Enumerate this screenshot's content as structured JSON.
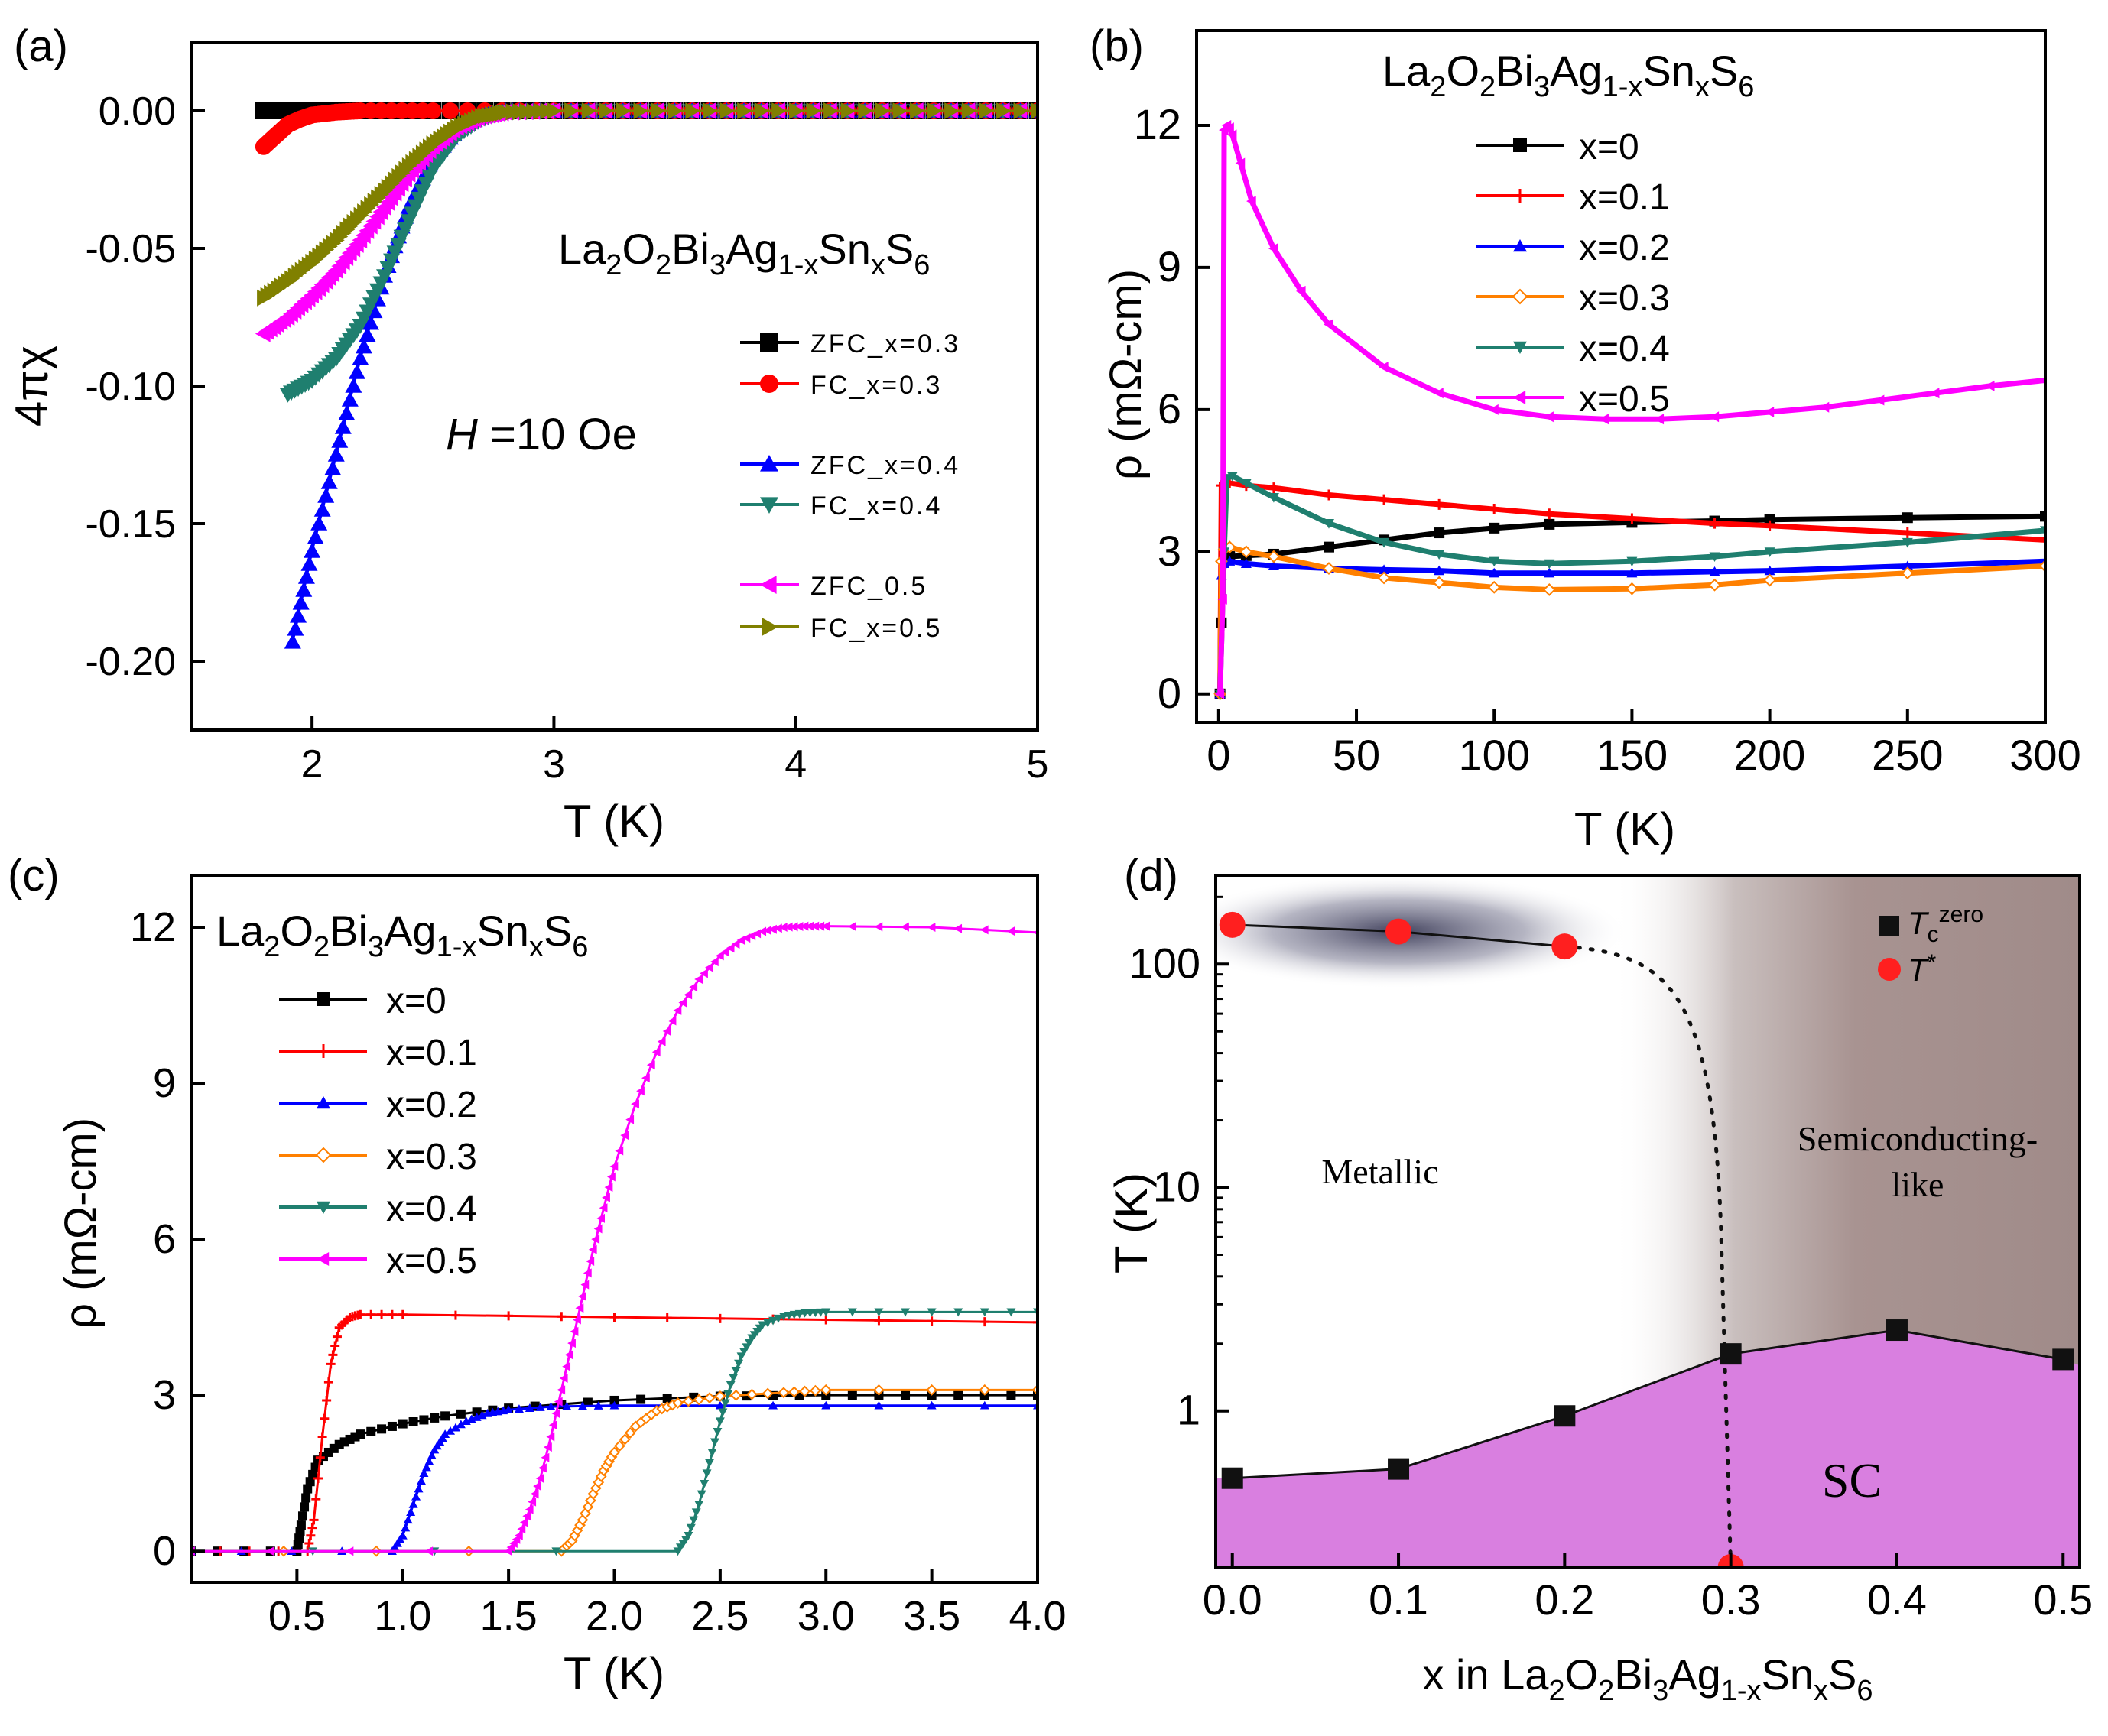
{
  "chart_data": [
    {
      "panel": "(a)",
      "type": "scatter",
      "title": "La2O2Bi3Ag1-xSnxS6",
      "title_parts": [
        "La",
        "2",
        "O",
        "2",
        "Bi",
        "3",
        "Ag",
        "1-x",
        "Sn",
        "x",
        "S",
        "6"
      ],
      "annotation": "H =10 Oe",
      "annotation_italic": "H",
      "annotation_rest": " =10 Oe",
      "xlabel": "T (K)",
      "ylabel": "4πχ",
      "xlim": [
        1.5,
        5
      ],
      "ylim": [
        -0.225,
        0.025
      ],
      "xticks": [
        2,
        3,
        4,
        5
      ],
      "xtick_labels": [
        "2",
        "3",
        "4",
        "5"
      ],
      "yticks": [
        0.0,
        -0.05,
        -0.1,
        -0.15,
        -0.2
      ],
      "ytick_labels": [
        "0.00",
        "-0.05",
        "-0.10",
        "-0.15",
        "-0.20"
      ],
      "series": [
        {
          "name": "ZFC_x=0.3",
          "color": "#000000",
          "marker": "square",
          "x": [
            1.8,
            2.0,
            2.2,
            2.5,
            3.0,
            3.5,
            4.0,
            4.5,
            5.0
          ],
          "y": [
            0,
            0,
            0,
            0,
            0,
            0,
            0,
            0,
            0
          ]
        },
        {
          "name": "FC_x=0.3",
          "color": "#ff0000",
          "marker": "circle",
          "x": [
            1.8,
            1.85,
            1.9,
            1.95,
            2.0,
            2.1,
            2.2,
            2.5,
            3.0,
            3.5,
            4.0,
            4.5,
            5.0
          ],
          "y": [
            -0.013,
            -0.009,
            -0.005,
            -0.003,
            -0.0015,
            -0.0005,
            0,
            0,
            0,
            0,
            0,
            0,
            0
          ]
        },
        {
          "name": "ZFC_x=0.4",
          "color": "#0000ff",
          "marker": "triangle-up",
          "x": [
            1.92,
            2.0,
            2.1,
            2.2,
            2.3,
            2.4,
            2.5,
            2.6,
            2.7,
            2.8,
            3.0,
            3.5,
            4.0,
            4.5,
            5.0
          ],
          "y": [
            -0.193,
            -0.16,
            -0.125,
            -0.09,
            -0.06,
            -0.035,
            -0.017,
            -0.007,
            -0.002,
            0,
            0,
            0,
            0,
            0,
            0
          ]
        },
        {
          "name": "FC_x=0.4",
          "color": "#1f7f6f",
          "marker": "triangle-down",
          "x": [
            1.9,
            2.0,
            2.1,
            2.2,
            2.3,
            2.4,
            2.5,
            2.6,
            2.7,
            2.8,
            3.0,
            3.5,
            4.0,
            4.5,
            5.0
          ],
          "y": [
            -0.103,
            -0.098,
            -0.09,
            -0.078,
            -0.06,
            -0.04,
            -0.021,
            -0.009,
            -0.003,
            -0.0005,
            0,
            0,
            0,
            0,
            0
          ]
        },
        {
          "name": "ZFC_0.5",
          "color": "#ff00ff",
          "marker": "triangle-left",
          "x": [
            1.8,
            1.9,
            2.0,
            2.1,
            2.2,
            2.3,
            2.4,
            2.5,
            2.6,
            2.7,
            2.8,
            3.0,
            3.5,
            4.0,
            4.5,
            5.0
          ],
          "y": [
            -0.081,
            -0.075,
            -0.067,
            -0.058,
            -0.047,
            -0.035,
            -0.023,
            -0.013,
            -0.006,
            -0.002,
            -0.0005,
            0,
            0,
            0,
            0,
            0
          ]
        },
        {
          "name": "FC_x=0.5",
          "color": "#808000",
          "marker": "triangle-right",
          "x": [
            1.8,
            1.9,
            2.0,
            2.1,
            2.2,
            2.3,
            2.4,
            2.5,
            2.6,
            2.7,
            2.8,
            3.0,
            3.5,
            4.0,
            4.5,
            5.0
          ],
          "y": [
            -0.068,
            -0.062,
            -0.055,
            -0.047,
            -0.038,
            -0.029,
            -0.02,
            -0.012,
            -0.006,
            -0.002,
            -0.0005,
            0,
            0,
            0,
            0,
            0
          ]
        }
      ]
    },
    {
      "panel": "(b)",
      "type": "line",
      "title": "La2O2Bi3Ag1-xSnxS6",
      "title_parts": [
        "La",
        "2",
        "O",
        "2",
        "Bi",
        "3",
        "Ag",
        "1-x",
        "Sn",
        "x",
        "S",
        "6"
      ],
      "xlabel": "T (K)",
      "ylabel": "ρ (mΩ-cm)",
      "xlim": [
        -8,
        300
      ],
      "ylim": [
        -0.6,
        14
      ],
      "xticks": [
        0,
        50,
        100,
        150,
        200,
        250,
        300
      ],
      "xtick_labels": [
        "0",
        "50",
        "100",
        "150",
        "200",
        "250",
        "300"
      ],
      "yticks": [
        0,
        3,
        6,
        9,
        12
      ],
      "ytick_labels": [
        "0",
        "3",
        "6",
        "9",
        "12"
      ],
      "series": [
        {
          "name": "x=0",
          "color": "#000000",
          "marker": "square",
          "x": [
            0.5,
            1,
            2,
            4,
            10,
            20,
            40,
            60,
            80,
            100,
            120,
            150,
            180,
            200,
            250,
            300
          ],
          "y": [
            0,
            1.5,
            2.8,
            2.9,
            2.92,
            2.95,
            3.1,
            3.25,
            3.4,
            3.5,
            3.58,
            3.62,
            3.65,
            3.68,
            3.72,
            3.75
          ]
        },
        {
          "name": "x=0.1",
          "color": "#ff0000",
          "marker": "plus",
          "x": [
            0.5,
            1,
            2,
            4,
            10,
            20,
            40,
            60,
            80,
            100,
            120,
            150,
            180,
            200,
            250,
            300
          ],
          "y": [
            0,
            4.4,
            4.45,
            4.45,
            4.4,
            4.35,
            4.2,
            4.1,
            4.0,
            3.9,
            3.8,
            3.7,
            3.6,
            3.55,
            3.4,
            3.25
          ]
        },
        {
          "name": "x=0.2",
          "color": "#0000ff",
          "marker": "triangle-up",
          "x": [
            0.5,
            1,
            2,
            4,
            10,
            20,
            40,
            60,
            80,
            100,
            120,
            150,
            180,
            200,
            250,
            300
          ],
          "y": [
            0,
            2.5,
            2.75,
            2.8,
            2.75,
            2.7,
            2.65,
            2.62,
            2.6,
            2.55,
            2.55,
            2.55,
            2.58,
            2.6,
            2.7,
            2.8
          ]
        },
        {
          "name": "x=0.3",
          "color": "#ff8000",
          "marker": "diamond-open",
          "x": [
            0.5,
            1,
            2,
            4,
            10,
            20,
            40,
            60,
            80,
            100,
            120,
            150,
            180,
            200,
            250,
            300
          ],
          "y": [
            0,
            2.8,
            3.05,
            3.1,
            3.0,
            2.9,
            2.65,
            2.45,
            2.35,
            2.25,
            2.2,
            2.22,
            2.3,
            2.4,
            2.55,
            2.7
          ]
        },
        {
          "name": "x=0.4",
          "color": "#1f7f6f",
          "marker": "triangle-down",
          "x": [
            0.5,
            2,
            3,
            5,
            10,
            20,
            40,
            60,
            80,
            100,
            120,
            150,
            180,
            200,
            250,
            300
          ],
          "y": [
            0,
            3.0,
            4.55,
            4.6,
            4.45,
            4.15,
            3.6,
            3.2,
            2.95,
            2.8,
            2.75,
            2.8,
            2.9,
            3.0,
            3.2,
            3.45
          ]
        },
        {
          "name": "x=0.5",
          "color": "#ff00ff",
          "marker": "triangle-left",
          "x": [
            0.5,
            1.5,
            2,
            3,
            4,
            5,
            8,
            12,
            20,
            30,
            40,
            60,
            80,
            100,
            120,
            140,
            160,
            180,
            200,
            220,
            240,
            260,
            280,
            300
          ],
          "y": [
            0,
            2,
            11.9,
            12.0,
            11.95,
            11.8,
            11.2,
            10.4,
            9.4,
            8.5,
            7.8,
            6.9,
            6.35,
            6.0,
            5.85,
            5.8,
            5.8,
            5.85,
            5.95,
            6.05,
            6.2,
            6.35,
            6.5,
            6.62
          ]
        }
      ]
    },
    {
      "panel": "(c)",
      "type": "line",
      "title": "La2O2Bi3Ag1-xSnxS6",
      "title_parts": [
        "La",
        "2",
        "O",
        "2",
        "Bi",
        "3",
        "Ag",
        "1-x",
        "Sn",
        "x",
        "S",
        "6"
      ],
      "xlabel": "T (K)",
      "ylabel": "ρ (mΩ-cm)",
      "xlim": [
        0,
        4
      ],
      "ylim": [
        -0.6,
        13
      ],
      "xticks": [
        0.5,
        1.0,
        1.5,
        2.0,
        2.5,
        3.0,
        3.5,
        4.0
      ],
      "xtick_labels": [
        "0.5",
        "1.0",
        "1.5",
        "2.0",
        "2.5",
        "3.0",
        "3.5",
        "4.0"
      ],
      "yticks": [
        0,
        3,
        6,
        9,
        12
      ],
      "ytick_labels": [
        "0",
        "3",
        "6",
        "9",
        "12"
      ],
      "series": [
        {
          "name": "x=0",
          "color": "#000000",
          "marker": "square",
          "x": [
            0,
            0.5,
            0.52,
            0.55,
            0.6,
            0.7,
            0.8,
            1.0,
            1.2,
            1.5,
            2.0,
            2.5,
            3.0,
            3.5,
            4.0
          ],
          "y": [
            0,
            0,
            0.5,
            1.2,
            1.75,
            2.05,
            2.25,
            2.45,
            2.6,
            2.75,
            2.9,
            2.98,
            3.0,
            3.0,
            3.0
          ]
        },
        {
          "name": "x=0.1",
          "color": "#ff0000",
          "marker": "plus",
          "x": [
            0,
            0.55,
            0.58,
            0.62,
            0.66,
            0.7,
            0.75,
            0.8,
            1.0,
            2.0,
            3.0,
            4.0
          ],
          "y": [
            0,
            0,
            0.6,
            2.2,
            3.6,
            4.3,
            4.5,
            4.55,
            4.55,
            4.5,
            4.45,
            4.4
          ]
        },
        {
          "name": "x=0.2",
          "color": "#0000ff",
          "marker": "triangle-up",
          "x": [
            0,
            0.95,
            1.0,
            1.05,
            1.1,
            1.15,
            1.2,
            1.3,
            1.4,
            1.5,
            1.7,
            2.0,
            3.0,
            4.0
          ],
          "y": [
            0,
            0,
            0.3,
            0.9,
            1.5,
            1.95,
            2.25,
            2.5,
            2.65,
            2.72,
            2.78,
            2.8,
            2.8,
            2.8
          ]
        },
        {
          "name": "x=0.3",
          "color": "#ff8000",
          "marker": "diamond-open",
          "x": [
            0,
            1.75,
            1.8,
            1.85,
            1.9,
            1.95,
            2.0,
            2.1,
            2.2,
            2.3,
            2.5,
            2.8,
            3.0,
            4.0
          ],
          "y": [
            0,
            0,
            0.2,
            0.6,
            1.1,
            1.55,
            1.9,
            2.4,
            2.7,
            2.85,
            2.98,
            3.05,
            3.1,
            3.1
          ]
        },
        {
          "name": "x=0.4",
          "color": "#1f7f6f",
          "marker": "triangle-down",
          "x": [
            0,
            2.3,
            2.35,
            2.4,
            2.45,
            2.5,
            2.55,
            2.6,
            2.65,
            2.7,
            2.8,
            2.9,
            3.0,
            3.5,
            4.0
          ],
          "y": [
            0,
            0,
            0.3,
            0.9,
            1.7,
            2.5,
            3.2,
            3.75,
            4.1,
            4.35,
            4.52,
            4.58,
            4.6,
            4.6,
            4.6
          ]
        },
        {
          "name": "x=0.5",
          "color": "#ff00ff",
          "marker": "triangle-left",
          "x": [
            0,
            1.5,
            1.55,
            1.6,
            1.65,
            1.7,
            1.75,
            1.8,
            1.85,
            1.9,
            1.95,
            2.0,
            2.1,
            2.2,
            2.3,
            2.4,
            2.5,
            2.6,
            2.7,
            2.8,
            2.9,
            3.0,
            3.5,
            4.0
          ],
          "y": [
            0,
            0,
            0.3,
            0.8,
            1.4,
            2.2,
            3.1,
            4.0,
            4.9,
            5.8,
            6.6,
            7.4,
            8.6,
            9.6,
            10.4,
            11.0,
            11.45,
            11.75,
            11.92,
            12.0,
            12.02,
            12.02,
            12.0,
            11.9
          ]
        }
      ]
    },
    {
      "panel": "(d)",
      "type": "scatter",
      "scale": "log-y",
      "xlabel": "x in La2O2Bi3Ag1-xSnxS6",
      "xlabel_parts": [
        "x in La",
        "2",
        "O",
        "2",
        "Bi",
        "3",
        "Ag",
        "1-x",
        "Sn",
        "x",
        "S",
        "6"
      ],
      "ylabel": "T (K)",
      "xlim": [
        -0.01,
        0.51
      ],
      "ylim": [
        0.2,
        250
      ],
      "xticks": [
        0.0,
        0.1,
        0.2,
        0.3,
        0.4,
        0.5
      ],
      "xtick_labels": [
        "0.0",
        "0.1",
        "0.2",
        "0.3",
        "0.4",
        "0.5"
      ],
      "yticks": [
        1,
        10,
        100
      ],
      "ytick_labels": [
        "1",
        "10",
        "100"
      ],
      "regions": [
        "Metallic",
        "Semiconducting-",
        "like",
        "SC"
      ],
      "legend": [
        {
          "symbol": "square",
          "color": "#111111",
          "label_main": "T",
          "label_sub": "c",
          "label_sup": "zero"
        },
        {
          "symbol": "circle",
          "color": "#ff1f1f",
          "label_main": "T",
          "label_sup": "*"
        }
      ],
      "series": [
        {
          "name": "Tc zero",
          "color": "#111111",
          "marker": "square",
          "x": [
            0.0,
            0.1,
            0.2,
            0.3,
            0.4,
            0.5
          ],
          "y": [
            0.5,
            0.55,
            0.95,
            1.8,
            2.3,
            1.7
          ]
        },
        {
          "name": "T*",
          "color": "#ff1f1f",
          "marker": "circle",
          "x": [
            0.0,
            0.1,
            0.2,
            0.3
          ],
          "y": [
            150,
            140,
            120,
            0.2
          ]
        }
      ]
    }
  ]
}
